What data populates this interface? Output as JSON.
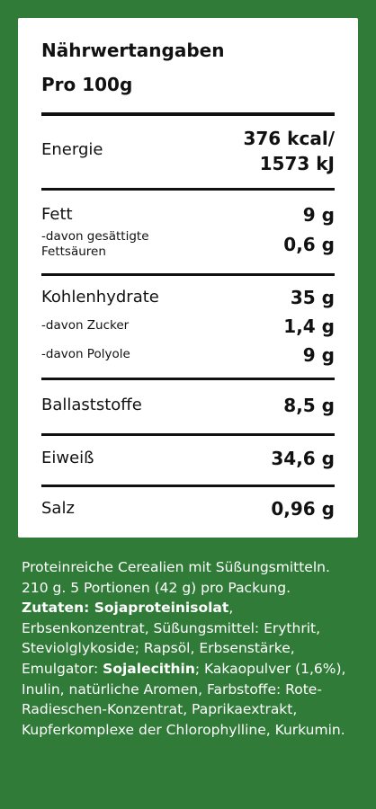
{
  "header": {
    "title": "Nährwertangaben",
    "subtitle": "Pro 100g"
  },
  "rows": [
    {
      "label": "Energie",
      "value": [
        "376 kcal/",
        "1573 kJ"
      ]
    },
    {
      "label": "Fett",
      "value": "9 g"
    },
    {
      "label": "-davon gesättigte Fettsäuren",
      "value": "0,6 g"
    },
    {
      "label": "Kohlenhydrate",
      "value": "35 g"
    },
    {
      "label": "-davon Zucker",
      "value": "1,4 g"
    },
    {
      "label": "-davon Polyole",
      "value": "9 g"
    },
    {
      "label": "Ballaststoffe",
      "value": "8,5 g"
    },
    {
      "label": "Eiweiß",
      "value": "34,6 g"
    },
    {
      "label": "Salz",
      "value": "0,96 g"
    }
  ],
  "description": "Proteinreiche Cerealien mit Süßungsmitteln. 210 g. 5 Portionen (42 g) pro Packung.",
  "ingredients": [
    {
      "text": "Zutaten: Sojaproteinisolat",
      "bold": true
    },
    {
      "text": ", Erbsenkonzentrat, Süßungsmittel: Erythrit, Steviolglykoside; Rapsöl, Erbsenstärke, Emulgator: ",
      "bold": false
    },
    {
      "text": "Sojalecithin",
      "bold": true
    },
    {
      "text": "; Kakaopulver (1,6%), Inulin, natürliche Aromen, Farbstoffe: Rote-Radieschen-Konzentrat, Paprikaextrakt, Kupferkomplexe der Chlorophylline, Kurkumin.",
      "bold": false
    }
  ]
}
